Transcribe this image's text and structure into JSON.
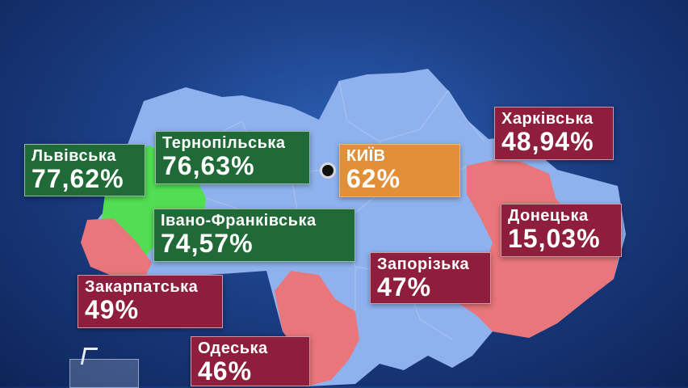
{
  "map": {
    "colors": {
      "base": "#8fb2ee",
      "west_green": "#52de52",
      "kyiv_label": "#e28f3a",
      "red_region": "#e8767a",
      "green_label": "#1f6a36",
      "red_label": "#8e1e3c"
    },
    "regions": [
      {
        "id": "lviv",
        "name": "Львівська",
        "value": "77,62%",
        "style": "green"
      },
      {
        "id": "ternopil",
        "name": "Тернопільська",
        "value": "76,63%",
        "style": "green"
      },
      {
        "id": "ivano_frankivsk",
        "name": "Івано-Франківська",
        "value": "74,57%",
        "style": "green"
      },
      {
        "id": "kyiv",
        "name": "КИЇВ",
        "value": "62%",
        "style": "orange"
      },
      {
        "id": "kharkiv",
        "name": "Харківська",
        "value": "48,94%",
        "style": "red"
      },
      {
        "id": "donetsk",
        "name": "Донецька",
        "value": "15,03%",
        "style": "red"
      },
      {
        "id": "zaporizhzhia",
        "name": "Запорізька",
        "value": "47%",
        "style": "red"
      },
      {
        "id": "zakarpattia",
        "name": "Закарпатська",
        "value": "49%",
        "style": "red"
      },
      {
        "id": "odesa",
        "name": "Одеська",
        "value": "46%",
        "style": "red"
      }
    ]
  }
}
